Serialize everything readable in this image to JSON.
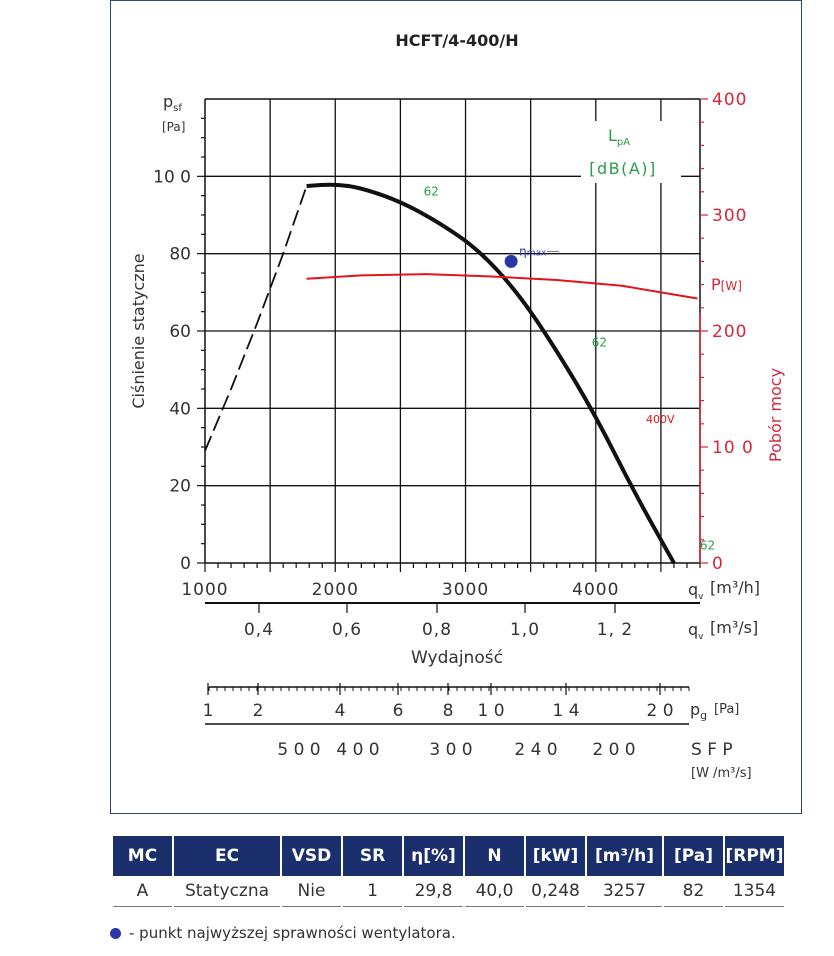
{
  "chart_data": {
    "type": "line",
    "title": "HCFT/4-400/H",
    "ylabel": "Ciśnienie statyczne",
    "y_symbol": "p",
    "y_symbol_sub": "sf",
    "y_unit": "[Pa]",
    "ylim": [
      0,
      120
    ],
    "yticks": [
      "0",
      "20",
      "40",
      "60",
      "80",
      "10 0"
    ],
    "xlabel": "Wydajność",
    "xlim": [
      1000,
      4800
    ],
    "xticks": [
      "1000",
      "2000",
      "3000",
      "4000"
    ],
    "x_symbol": "q",
    "x_symbol_sub": "v",
    "x_unit": "[m³/h]",
    "x2_ticks": [
      "0,4",
      "0,6",
      "0,8",
      "1,0",
      "1, 2"
    ],
    "x2_unit": "[m³/s]",
    "y2label": "Pobór mocy",
    "y2_symbol": "P",
    "y2_unit": "[W]",
    "y2lim": [
      0,
      400
    ],
    "y2ticks": [
      "0",
      "10 0",
      "200",
      "300",
      "400"
    ],
    "lpa_label": "L",
    "lpa_sub": "pA",
    "lpa_unit": "[dB(A)]",
    "pressure_curve": [
      [
        1780,
        97.5
      ],
      [
        2000,
        98
      ],
      [
        2200,
        97
      ],
      [
        2500,
        93.5
      ],
      [
        2800,
        88
      ],
      [
        3100,
        81
      ],
      [
        3400,
        70
      ],
      [
        3700,
        55
      ],
      [
        4000,
        38
      ],
      [
        4300,
        18
      ],
      [
        4600,
        0
      ]
    ],
    "pressure_dashed": [
      [
        1000,
        29
      ],
      [
        1200,
        45
      ],
      [
        1400,
        62
      ],
      [
        1600,
        80
      ],
      [
        1780,
        97.5
      ]
    ],
    "power_curve": [
      [
        1780,
        245
      ],
      [
        2200,
        248
      ],
      [
        2700,
        249
      ],
      [
        3200,
        247
      ],
      [
        3700,
        244
      ],
      [
        4200,
        239
      ],
      [
        4780,
        228
      ]
    ],
    "power_label": "400V",
    "noise_labels": [
      {
        "x": 2740,
        "y": 95,
        "text": "62"
      },
      {
        "x": 4030,
        "y": 56,
        "text": "62"
      },
      {
        "x": 4860,
        "y": 3.5,
        "text": "62"
      }
    ],
    "eta_max": {
      "x": 3350,
      "y": 78,
      "label": "η",
      "label_sub": "max"
    },
    "secondary_scales": {
      "pg_label": "p",
      "pg_sub": "g",
      "pg_unit": "[Pa]",
      "pg_ticks": [
        "1",
        "2",
        "4",
        "6",
        "8",
        "1 0",
        "1 4",
        "2 0"
      ],
      "sfp_label": "S F P",
      "sfp_unit": "[W /m³/s]",
      "sfp_ticks": [
        "5 0 0",
        "4 0 0",
        "3 0 0",
        "2 4 0",
        "2 0 0"
      ]
    },
    "colors": {
      "curve": "#111111",
      "power": "#e3141b",
      "noise": "#2a9d4a",
      "eta": "#2b35a6",
      "red_axis": "#d6273a"
    }
  },
  "table": {
    "headers": [
      "MC",
      "EC",
      "VSD",
      "SR",
      "η[%]",
      "N",
      "[kW]",
      "[m³/h]",
      "[Pa]",
      "[RPM]"
    ],
    "row": [
      "A",
      "Statyczna",
      "Nie",
      "1",
      "29,8",
      "40,0",
      "0,248",
      "3257",
      "82",
      "1354"
    ]
  },
  "footnote": "- punkt najwyższej sprawności wentylatora."
}
